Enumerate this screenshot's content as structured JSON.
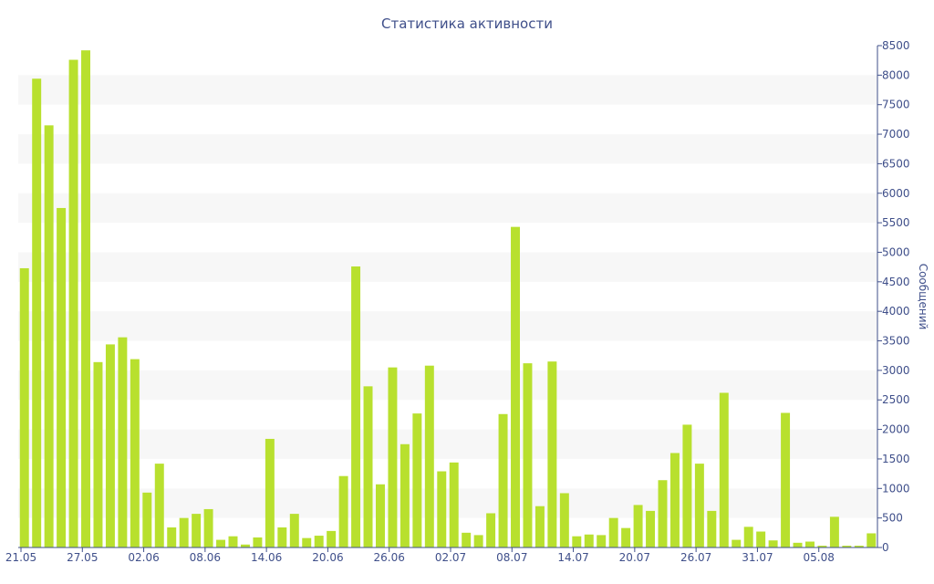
{
  "colors": {
    "bar": "#b8e02e",
    "band": "#f7f7f7",
    "axis": "#3f4f8a",
    "text": "#3f4f8a"
  },
  "chart_data": {
    "type": "bar",
    "title": "Статистика активности",
    "ylabel": "Сообщений",
    "xlabel": "",
    "y_axis_position": "right",
    "ylim": [
      0,
      8500
    ],
    "yticks": [
      0,
      500,
      1000,
      1500,
      2000,
      2500,
      3000,
      3500,
      4000,
      4500,
      5000,
      5500,
      6000,
      6500,
      7000,
      7500,
      8000,
      8500
    ],
    "grid": "alternating horizontal bands",
    "x_tick_labels": [
      {
        "index": 0,
        "label": "21.05"
      },
      {
        "index": 5,
        "label": "27.05"
      },
      {
        "index": 10,
        "label": "02.06"
      },
      {
        "index": 15,
        "label": "08.06"
      },
      {
        "index": 20,
        "label": "14.06"
      },
      {
        "index": 25,
        "label": "20.06"
      },
      {
        "index": 30,
        "label": "26.06"
      },
      {
        "index": 35,
        "label": "02.07"
      },
      {
        "index": 40,
        "label": "08.07"
      },
      {
        "index": 45,
        "label": "14.07"
      },
      {
        "index": 50,
        "label": "20.07"
      },
      {
        "index": 55,
        "label": "26.07"
      },
      {
        "index": 60,
        "label": "31.07"
      },
      {
        "index": 65,
        "label": "05.08"
      }
    ],
    "values": [
      4730,
      7940,
      7150,
      5750,
      8260,
      8420,
      3140,
      3440,
      3560,
      3190,
      930,
      1420,
      340,
      500,
      570,
      650,
      130,
      190,
      50,
      170,
      1840,
      340,
      570,
      160,
      200,
      280,
      1210,
      4760,
      2730,
      1070,
      3050,
      1750,
      2270,
      3080,
      1290,
      1440,
      250,
      210,
      580,
      2260,
      5430,
      3120,
      700,
      3150,
      920,
      190,
      220,
      210,
      500,
      330,
      720,
      620,
      1140,
      1600,
      2080,
      1420,
      620,
      2620,
      130,
      350,
      270,
      120,
      2280,
      80,
      100,
      30,
      520,
      30,
      30,
      240
    ]
  }
}
